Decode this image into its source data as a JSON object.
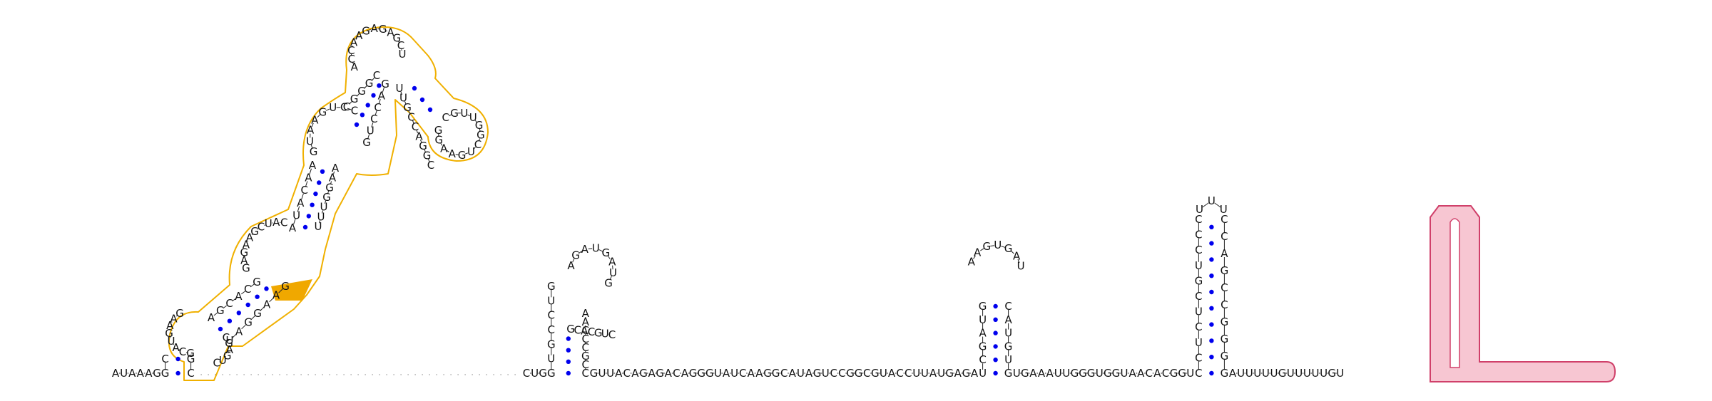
{
  "colors": {
    "pair_dot": "#0000ee",
    "gold_outline": "#f0b000",
    "gold_fill": "#f0a800",
    "pink_fill": "#f7c6d2",
    "pink_outline": "#d0406a"
  },
  "segments": {
    "lead": [
      "A",
      "U",
      "A",
      "A",
      "A",
      "G"
    ],
    "h1_hairpin_5": [
      "G",
      "C",
      "A",
      "U",
      "G",
      "A",
      "A",
      "G"
    ],
    "h1_hairpin_3": [
      "C",
      "G",
      "A",
      "G",
      "U",
      "C"
    ],
    "h1_stem_5": [
      "A",
      "G",
      "C",
      "A",
      "C",
      "G"
    ],
    "h1_stem_3": [
      "U",
      "A",
      "G",
      "G",
      "A",
      "A",
      "G"
    ],
    "h1_loop_left": [
      "G",
      "A",
      "G",
      "A",
      "A",
      "G",
      "C",
      "U",
      "A",
      "C"
    ],
    "h1_stem2_5": [
      "A",
      "U",
      "A",
      "C",
      "A",
      "A"
    ],
    "h1_stem2_3": [
      "U",
      "U",
      "U",
      "G",
      "G",
      "A",
      "A"
    ],
    "h1_loop2": [
      "G",
      "U",
      "A",
      "A",
      "G",
      "U",
      "C",
      "C"
    ],
    "h1_stem3_5": [
      "C",
      "G",
      "G",
      "G",
      "C"
    ],
    "h1_stem3_3": [
      "G",
      "U",
      "C",
      "C",
      "A",
      "G"
    ],
    "h1_top": [
      "A",
      "C",
      "C",
      "A",
      "A",
      "G",
      "A",
      "G",
      "A",
      "G",
      "C",
      "U"
    ],
    "h1_right_hairpin": [
      "C",
      "G",
      "U",
      "U",
      "G",
      "G",
      "C",
      "U",
      "G",
      "A",
      "A",
      "G",
      "G"
    ],
    "h1_inner_right": [
      "U",
      "U",
      "G",
      "C",
      "C",
      "A",
      "G",
      "G",
      "C"
    ],
    "gap_dots": 34,
    "h2_left_base": [
      "C",
      "U",
      "G"
    ],
    "h2_stem_5": [
      "G",
      "U",
      "G",
      "C",
      "C",
      "U",
      "G"
    ],
    "h2_stem_3": [
      "C",
      "C",
      "G",
      "C",
      "C",
      "C",
      "A",
      "A"
    ],
    "h2_loop": [
      "A",
      "G",
      "A",
      "U",
      "G",
      "A",
      "U",
      "G"
    ],
    "h2_inner": [
      "G",
      "C",
      "A",
      "C",
      "G",
      "U",
      "C"
    ],
    "mid": [
      "G",
      "U",
      "U",
      "A",
      "C",
      "A",
      "G",
      "A",
      "G",
      "A",
      "C",
      "A",
      "G",
      "G",
      "G",
      "U",
      "A",
      "U",
      "C",
      "A",
      "A",
      "G",
      "G",
      "C",
      "A",
      "U",
      "A",
      "G",
      "U",
      "C",
      "C",
      "G",
      "G",
      "C",
      "G",
      "U",
      "A",
      "C",
      "C",
      "U",
      "U",
      "A",
      "U",
      "G",
      "A",
      "G",
      "A"
    ],
    "h3_stem_5": [
      "U",
      "C",
      "G",
      "A",
      "U",
      "G"
    ],
    "h3_loop": [
      "A",
      "A",
      "G",
      "U",
      "G",
      "A",
      "U"
    ],
    "h3_stem_3": [
      "C",
      "A",
      "U",
      "G",
      "U",
      "G"
    ],
    "mid2": [
      "U",
      "G",
      "A",
      "A",
      "A",
      "U",
      "U",
      "G",
      "G",
      "G",
      "U",
      "G",
      "G",
      "U",
      "A",
      "A",
      "C",
      "A",
      "C",
      "G",
      "G",
      "U"
    ],
    "h4_stem_5": [
      "C",
      "C",
      "U",
      "C",
      "U",
      "C",
      "G",
      "U",
      "C",
      "C",
      "C"
    ],
    "h4_loop": [
      "U",
      "U",
      "U"
    ],
    "h4_stem_3": [
      "C",
      "C",
      "A",
      "G",
      "C",
      "C",
      "G",
      "G",
      "G",
      "G"
    ],
    "tail": [
      "A",
      "U",
      "U",
      "U",
      "U",
      "U",
      "G",
      "U",
      "U",
      "U",
      "U",
      "U",
      "G",
      "U"
    ]
  }
}
